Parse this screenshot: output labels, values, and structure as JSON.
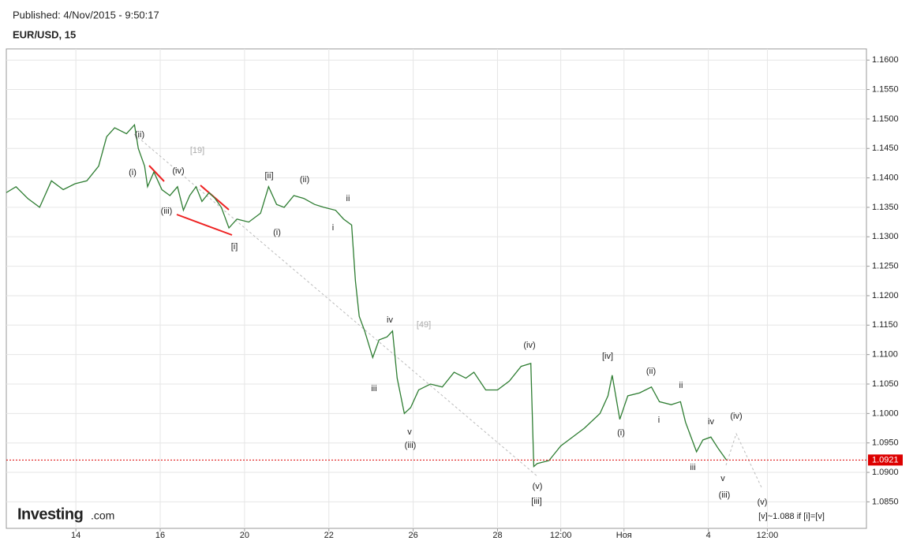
{
  "chart_data": {
    "type": "line",
    "subtitle": "Published: 4/Nov/2015 - 9:50:17",
    "title": "EUR/USD, 15",
    "xlim": [
      -1.65,
      18.75
    ],
    "ylim": [
      1.0805,
      1.1619
    ],
    "grid": true,
    "xticks": [
      {
        "value": 0,
        "label": "14"
      },
      {
        "value": 2,
        "label": "16"
      },
      {
        "value": 4,
        "label": "20"
      },
      {
        "value": 6,
        "label": "22"
      },
      {
        "value": 8,
        "label": "26"
      },
      {
        "value": 10,
        "label": "28"
      },
      {
        "value": 11.5,
        "label": "12:00"
      },
      {
        "value": 13,
        "label": "Ноя"
      },
      {
        "value": 15,
        "label": "4"
      },
      {
        "value": 16.4,
        "label": "12:00"
      }
    ],
    "yticks": [
      {
        "value": 1.085,
        "label": "1.0850"
      },
      {
        "value": 1.09,
        "label": "1.0900"
      },
      {
        "value": 1.095,
        "label": "1.0950"
      },
      {
        "value": 1.1,
        "label": "1.1000"
      },
      {
        "value": 1.105,
        "label": "1.1050"
      },
      {
        "value": 1.11,
        "label": "1.1100"
      },
      {
        "value": 1.115,
        "label": "1.1150"
      },
      {
        "value": 1.12,
        "label": "1.1200"
      },
      {
        "value": 1.125,
        "label": "1.1250"
      },
      {
        "value": 1.13,
        "label": "1.1300"
      },
      {
        "value": 1.135,
        "label": "1.1350"
      },
      {
        "value": 1.14,
        "label": "1.1400"
      },
      {
        "value": 1.145,
        "label": "1.1450"
      },
      {
        "value": 1.15,
        "label": "1.1500"
      },
      {
        "value": 1.155,
        "label": "1.1550"
      },
      {
        "value": 1.16,
        "label": "1.1600"
      }
    ],
    "x": [
      -1.65,
      -1.42,
      -1.14,
      -0.86,
      -0.58,
      -0.3,
      -0.02,
      0.26,
      0.54,
      0.73,
      0.92,
      1.2,
      1.39,
      1.48,
      1.63,
      1.7,
      1.85,
      2.04,
      2.23,
      2.41,
      2.55,
      2.7,
      2.85,
      2.99,
      3.16,
      3.3,
      3.45,
      3.63,
      3.82,
      4.1,
      4.38,
      4.57,
      4.76,
      4.94,
      5.17,
      5.41,
      5.66,
      5.88,
      6.16,
      6.35,
      6.54,
      6.63,
      6.72,
      6.85,
      7.04,
      7.19,
      7.38,
      7.51,
      7.62,
      7.79,
      7.94,
      8.13,
      8.41,
      8.69,
      8.97,
      9.25,
      9.44,
      9.72,
      10.0,
      10.28,
      10.56,
      10.79,
      10.86,
      10.94,
      11.22,
      11.5,
      11.78,
      12.06,
      12.43,
      12.62,
      12.72,
      12.9,
      13.09,
      13.37,
      13.65,
      13.84,
      14.12,
      14.34,
      14.46,
      14.59,
      14.72,
      14.87,
      15.06,
      15.24,
      15.43
    ],
    "series": [
      {
        "color": "#2e7d32",
        "values": [
          1.1375,
          1.1385,
          1.1365,
          1.135,
          1.1395,
          1.138,
          1.139,
          1.1395,
          1.142,
          1.147,
          1.1485,
          1.1475,
          1.149,
          1.145,
          1.142,
          1.1385,
          1.141,
          1.138,
          1.137,
          1.1385,
          1.1345,
          1.137,
          1.1385,
          1.136,
          1.1375,
          1.1365,
          1.135,
          1.1315,
          1.133,
          1.1325,
          1.134,
          1.1385,
          1.1355,
          1.135,
          1.137,
          1.1365,
          1.1355,
          1.135,
          1.1345,
          1.133,
          1.132,
          1.1225,
          1.1165,
          1.114,
          1.1095,
          1.1125,
          1.113,
          1.114,
          1.106,
          1.1,
          1.101,
          1.104,
          1.105,
          1.1045,
          1.107,
          1.106,
          1.107,
          1.104,
          1.104,
          1.1055,
          1.108,
          1.1085,
          1.091,
          1.0915,
          1.092,
          1.0945,
          1.096,
          1.0975,
          1.1,
          1.103,
          1.1065,
          1.099,
          1.103,
          1.1035,
          1.1045,
          1.102,
          1.1015,
          1.102,
          1.0985,
          1.096,
          1.0935,
          1.0955,
          1.096,
          1.094,
          1.0921
        ]
      }
    ],
    "last_price": {
      "value": 1.0921,
      "label": "1.0921"
    },
    "annotations": [
      "(ii)",
      "(i)",
      "(iv)",
      "(iii)",
      "[19]",
      "[ii]",
      "(ii)",
      "ii",
      "i",
      "(i)",
      "[i]",
      "iv",
      "[49]",
      "iii",
      "v",
      "(iii)",
      "(iv)",
      "(v)",
      "[iii]",
      "[iv]",
      "(ii)",
      "ii",
      "i",
      "(i)",
      "iv",
      "(iv)",
      "iii",
      "v",
      "(iii)",
      "(v)",
      "[v]~1.088 if [i]=[v]"
    ]
  },
  "brand": {
    "name": "Investing",
    "suffix": ".com"
  }
}
